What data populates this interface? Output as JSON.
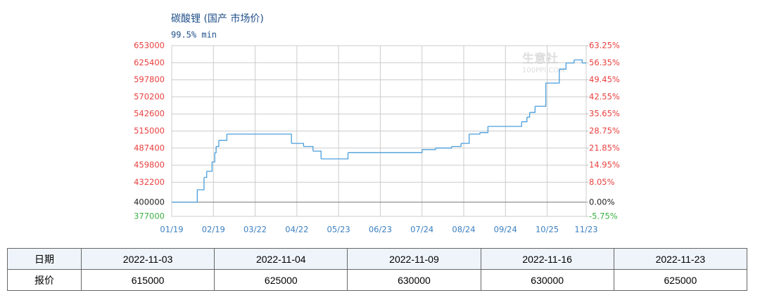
{
  "chart_data": {
    "type": "step",
    "title": "碳酸锂 (国产 市场价)",
    "subtitle": "99.5% min",
    "watermark": {
      "title": "生意社",
      "subtitle": "100PPI.COM"
    },
    "xlim": [
      "01/19",
      "11/23"
    ],
    "xticks": [
      "01/19",
      "02/19",
      "03/22",
      "04/22",
      "05/23",
      "06/23",
      "07/24",
      "08/24",
      "09/24",
      "10/25",
      "11/23"
    ],
    "ylim": [
      377000,
      653000
    ],
    "yticks": [
      653000,
      625400,
      597800,
      570200,
      542600,
      515000,
      487400,
      459800,
      432200,
      400000,
      377000
    ],
    "y2lim": [
      -5.75,
      63.25
    ],
    "y2ticks": [
      {
        "value": 63.25,
        "label": "63.25%"
      },
      {
        "value": 56.35,
        "label": "56.35%"
      },
      {
        "value": 49.45,
        "label": "49.45%"
      },
      {
        "value": 42.55,
        "label": "42.55%"
      },
      {
        "value": 35.65,
        "label": "35.65%"
      },
      {
        "value": 28.75,
        "label": "28.75%"
      },
      {
        "value": 21.85,
        "label": "21.85%"
      },
      {
        "value": 14.95,
        "label": "14.95%"
      },
      {
        "value": 8.05,
        "label": "8.05%"
      },
      {
        "value": 0,
        "label": "0.00%"
      },
      {
        "value": -5.75,
        "label": "-5.75%"
      }
    ],
    "grid": true,
    "series": [
      {
        "name": "碳酸锂",
        "color": "#4a9fdb",
        "x": [
          "01/19",
          "02/07",
          "02/12",
          "02/14",
          "02/18",
          "02/20",
          "02/21",
          "02/23",
          "03/01",
          "04/18",
          "04/27",
          "05/04",
          "05/10",
          "05/30",
          "07/24",
          "08/03",
          "08/15",
          "08/22",
          "08/28",
          "09/05",
          "09/11",
          "10/06",
          "10/10",
          "10/12",
          "10/16",
          "10/24",
          "11/03",
          "11/08",
          "11/14",
          "11/20",
          "11/23"
        ],
        "values": [
          400000,
          420000,
          440000,
          450000,
          465000,
          480000,
          490000,
          500000,
          510000,
          495000,
          490000,
          482500,
          470000,
          480000,
          485000,
          487500,
          490000,
          495000,
          510000,
          512500,
          522500,
          530000,
          537500,
          545000,
          555000,
          592500,
          615000,
          625000,
          630000,
          625000,
          625000
        ]
      }
    ]
  },
  "table": {
    "rows": [
      [
        "日期",
        "2022-11-03",
        "2022-11-04",
        "2022-11-09",
        "2022-11-16",
        "2022-11-23"
      ],
      [
        "报价",
        "615000",
        "625000",
        "630000",
        "630000",
        "625000"
      ]
    ]
  }
}
